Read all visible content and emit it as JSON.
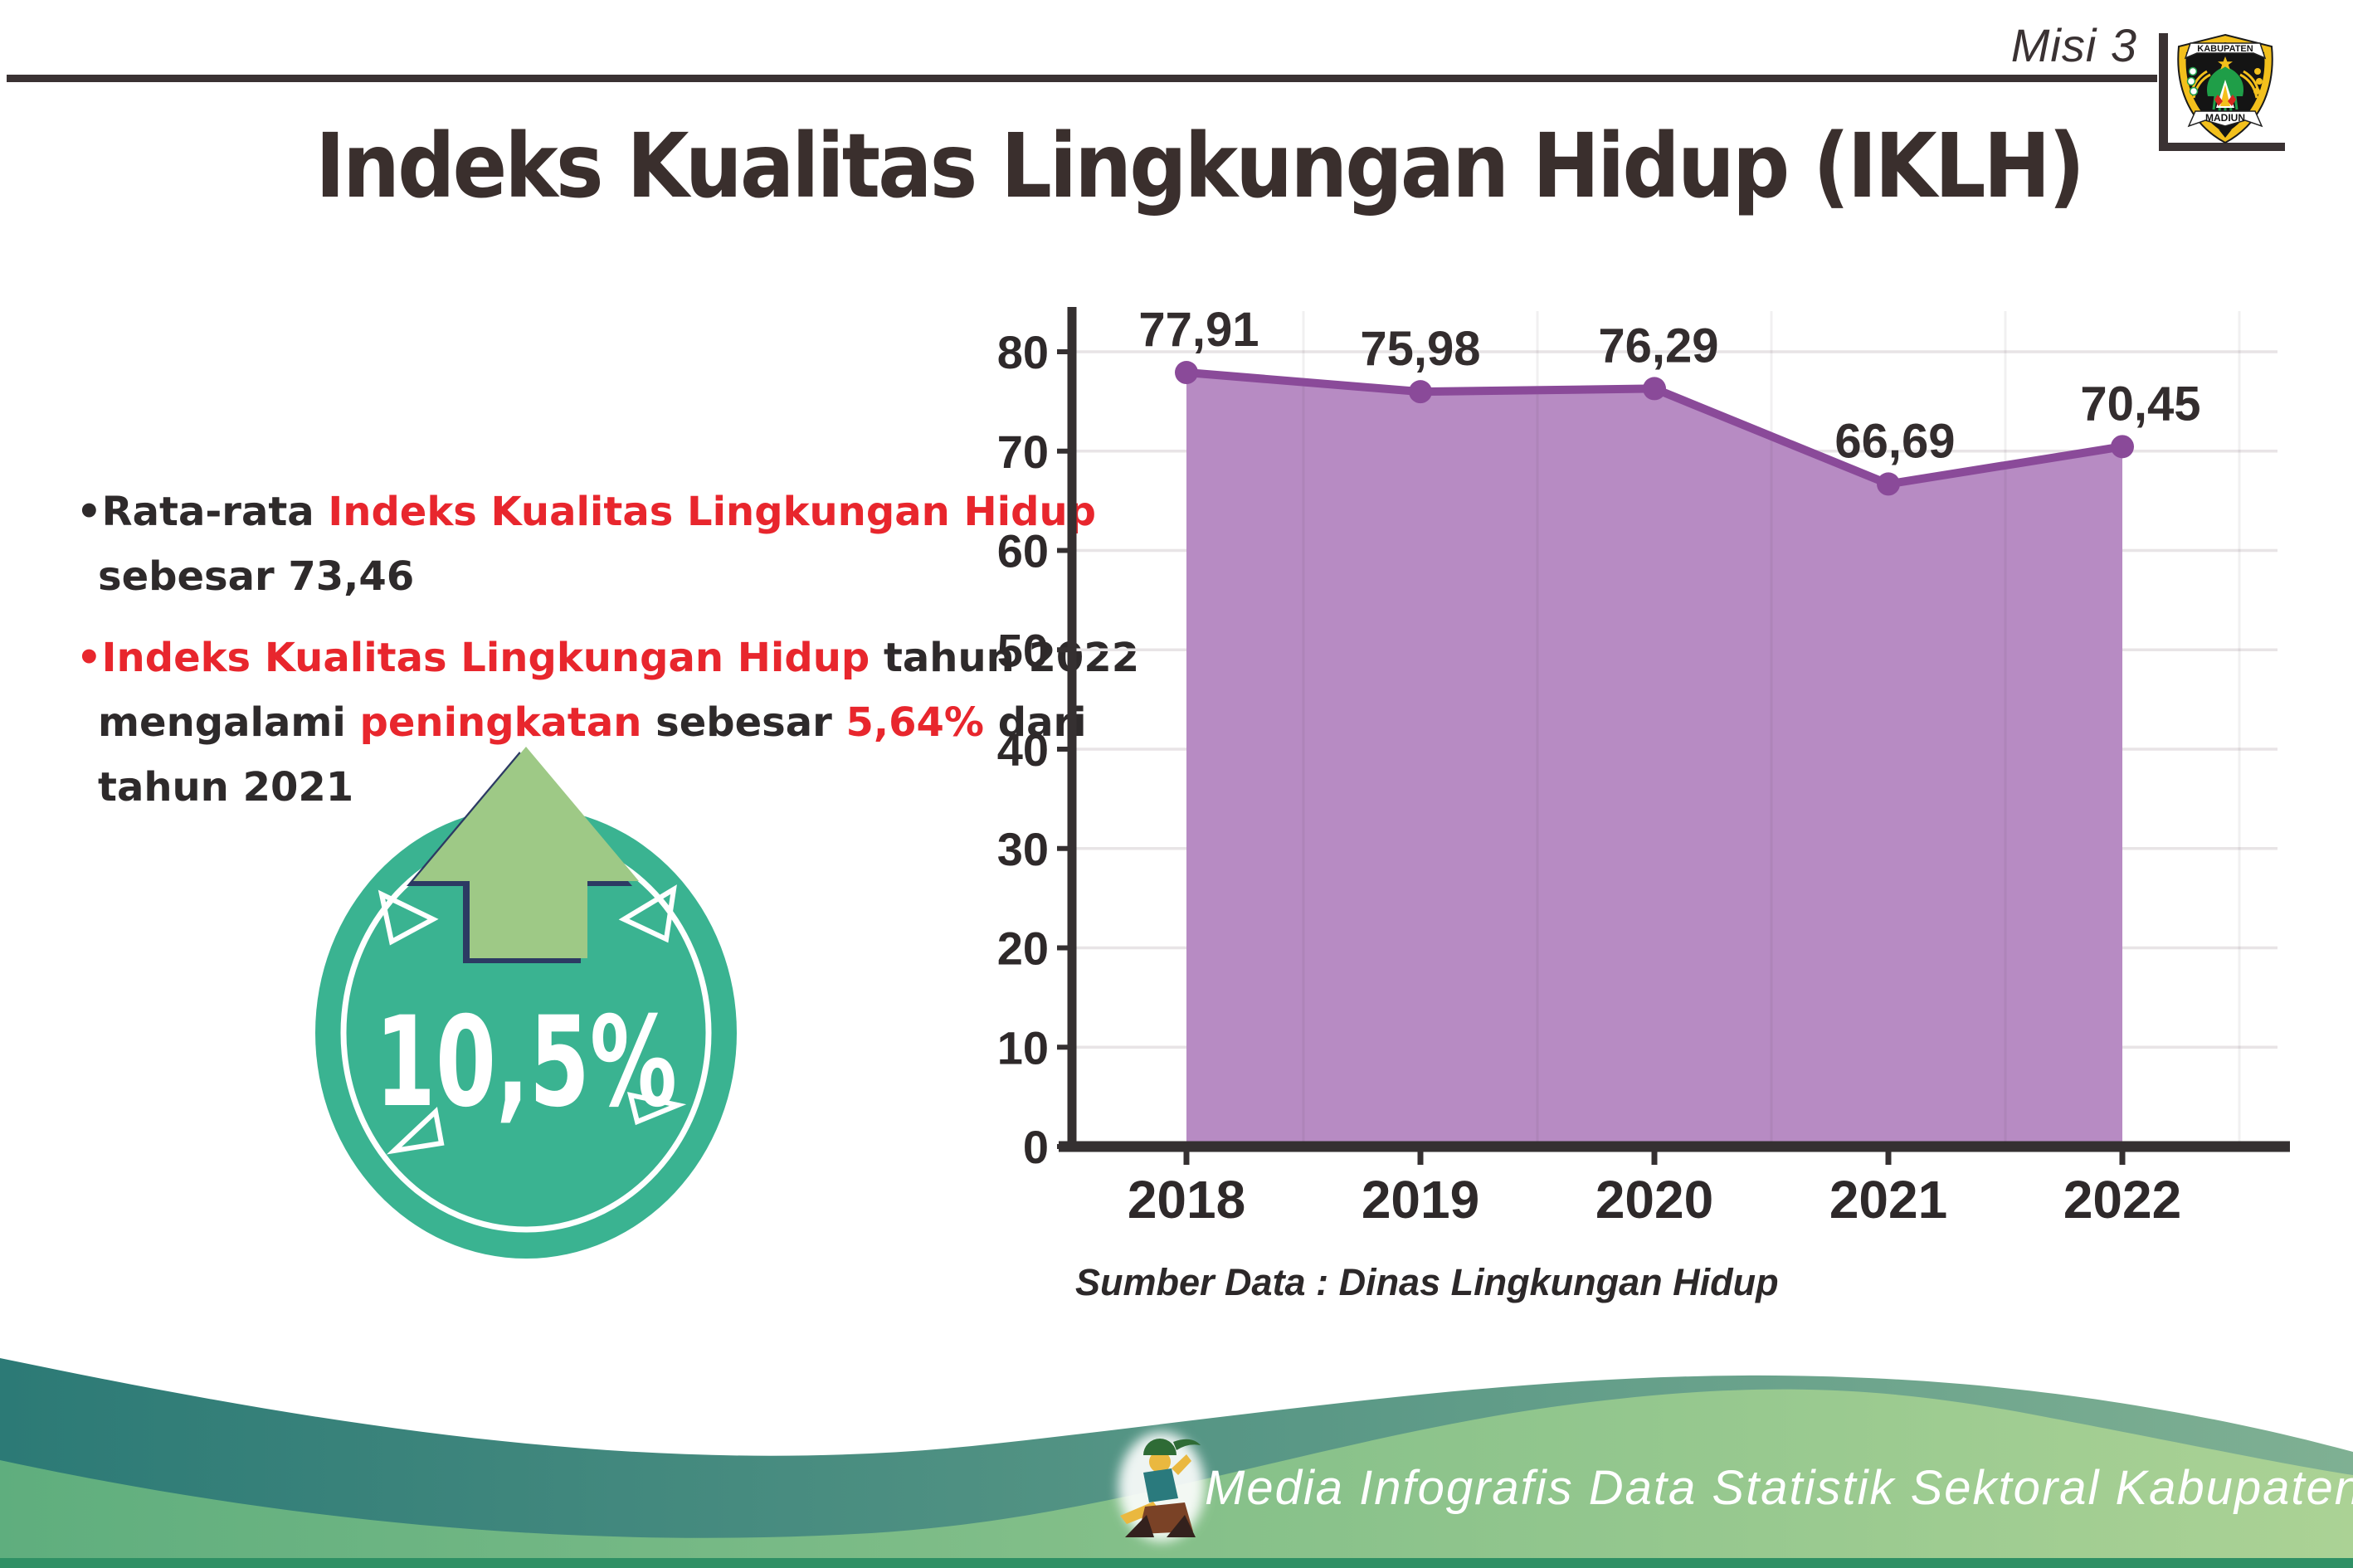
{
  "header": {
    "mission_label": "Misi 3",
    "title": "Indeks Kualitas Lingkungan Hidup (IKLH)"
  },
  "logo": {
    "banner_top": "KABUPATEN",
    "banner_bottom": "MADIUN"
  },
  "bullets": {
    "b1_seg1": "•Rata-rata ",
    "b1_seg2": "Indeks Kualitas Lingkungan Hidup",
    "b1_line2": "sebesar 73,46",
    "b2_seg1": "•Indeks Kualitas Lingkungan Hidup",
    "b2_seg2": " tahun 2022",
    "b2_seg3": "mengalami ",
    "b2_seg4": "peningkatan",
    "b2_seg5": " sebesar ",
    "b2_seg6": "5,64%",
    "b2_seg7": " dari",
    "b2_line3": "tahun 2021"
  },
  "badge": {
    "value": "10,5%"
  },
  "chart_data": {
    "type": "area",
    "title": "",
    "xlabel": "",
    "ylabel": "",
    "categories": [
      "2018",
      "2019",
      "2020",
      "2021",
      "2022"
    ],
    "values": [
      77.91,
      75.98,
      76.29,
      66.69,
      70.45
    ],
    "labels": [
      "77,91",
      "75,98",
      "76,29",
      "66,69",
      "70,45"
    ],
    "ylim": [
      0,
      80
    ],
    "yticks": [
      0,
      10,
      20,
      30,
      40,
      50,
      60,
      70,
      80
    ],
    "grid": true,
    "legend": "none",
    "source_note": "Sumber Data : Dinas Lingkungan Hidup",
    "colors": {
      "area_fill": "#b78bc3",
      "line": "#8a4a99",
      "marker": "#8a4a99",
      "axis": "#353031",
      "gridline": "#e8e4e6",
      "label": "#332d2e"
    }
  },
  "footer": {
    "text": "Media Infografis Data Statistik Sektoral Kabupaten Madiun |"
  }
}
